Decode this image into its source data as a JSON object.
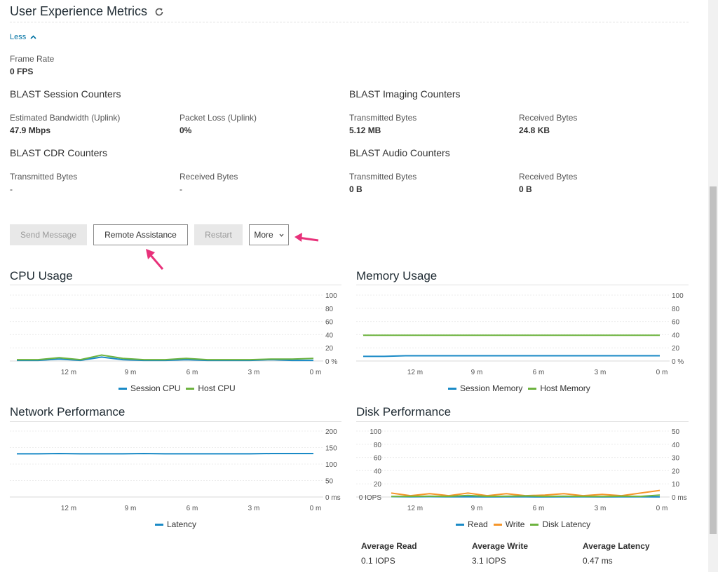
{
  "header": {
    "title": "User Experience Metrics",
    "refresh_icon": "refresh-icon"
  },
  "toggle": {
    "label": "Less",
    "icon": "chevron-up-icon"
  },
  "frame_rate": {
    "label": "Frame Rate",
    "value": "0 FPS"
  },
  "blast_session": {
    "title": "BLAST Session Counters",
    "bandwidth_label": "Estimated Bandwidth (Uplink)",
    "bandwidth_value": "47.9 Mbps",
    "packet_loss_label": "Packet Loss (Uplink)",
    "packet_loss_value": "0%"
  },
  "blast_imaging": {
    "title": "BLAST Imaging Counters",
    "tx_label": "Transmitted Bytes",
    "tx_value": "5.12 MB",
    "rx_label": "Received Bytes",
    "rx_value": "24.8 KB"
  },
  "blast_cdr": {
    "title": "BLAST CDR Counters",
    "tx_label": "Transmitted Bytes",
    "tx_value": "-",
    "rx_label": "Received Bytes",
    "rx_value": "-"
  },
  "blast_audio": {
    "title": "BLAST Audio Counters",
    "tx_label": "Transmitted Bytes",
    "tx_value": "0 B",
    "rx_label": "Received Bytes",
    "rx_value": "0 B"
  },
  "actions": {
    "send_message": "Send Message",
    "remote_assistance": "Remote Assistance",
    "restart": "Restart",
    "more": "More"
  },
  "colors": {
    "blue": "#1a8ac6",
    "green": "#6db33f",
    "orange": "#f5962a",
    "accent": "#e8317a"
  },
  "charts": {
    "cpu": {
      "title": "CPU Usage",
      "legend": [
        "Session CPU",
        "Host CPU"
      ]
    },
    "memory": {
      "title": "Memory Usage",
      "legend": [
        "Session Memory",
        "Host Memory"
      ]
    },
    "network": {
      "title": "Network Performance",
      "legend": [
        "Latency"
      ]
    },
    "disk": {
      "title": "Disk Performance",
      "legend": [
        "Read",
        "Write",
        "Disk Latency"
      ]
    }
  },
  "chart_data": [
    {
      "type": "line",
      "title": "CPU Usage",
      "x": [
        "14m",
        "13m",
        "12m",
        "11m",
        "10m",
        "9m",
        "8m",
        "7m",
        "6m",
        "5m",
        "4m",
        "3m",
        "2m",
        "1m",
        "0m"
      ],
      "x_ticks": [
        "12 m",
        "9 m",
        "6 m",
        "3 m",
        "0 m"
      ],
      "y_ticks": [
        "100",
        "80",
        "60",
        "40",
        "20",
        "0 %"
      ],
      "ylim": [
        0,
        100
      ],
      "series": [
        {
          "name": "Session CPU",
          "color": "#1a8ac6",
          "values": [
            1,
            1,
            3,
            1,
            6,
            2,
            1,
            1,
            2,
            1,
            1,
            1,
            2,
            1,
            1
          ]
        },
        {
          "name": "Host CPU",
          "color": "#6db33f",
          "values": [
            2,
            2,
            5,
            2,
            9,
            4,
            2,
            2,
            4,
            2,
            2,
            2,
            3,
            3,
            4
          ]
        }
      ]
    },
    {
      "type": "line",
      "title": "Memory Usage",
      "x": [
        "14m",
        "13m",
        "12m",
        "11m",
        "10m",
        "9m",
        "8m",
        "7m",
        "6m",
        "5m",
        "4m",
        "3m",
        "2m",
        "1m",
        "0m"
      ],
      "x_ticks": [
        "12 m",
        "9 m",
        "6 m",
        "3 m",
        "0 m"
      ],
      "y_ticks": [
        "100",
        "80",
        "60",
        "40",
        "20",
        "0 %"
      ],
      "ylim": [
        0,
        100
      ],
      "series": [
        {
          "name": "Session Memory",
          "color": "#1a8ac6",
          "values": [
            7,
            7,
            8,
            8,
            8,
            8,
            8,
            8,
            8,
            8,
            8,
            8,
            8,
            8,
            8
          ]
        },
        {
          "name": "Host Memory",
          "color": "#6db33f",
          "values": [
            39,
            39,
            39,
            39,
            39,
            39,
            39,
            39,
            39,
            39,
            39,
            39,
            39,
            39,
            39
          ]
        }
      ]
    },
    {
      "type": "line",
      "title": "Network Performance",
      "x": [
        "14m",
        "13m",
        "12m",
        "11m",
        "10m",
        "9m",
        "8m",
        "7m",
        "6m",
        "5m",
        "4m",
        "3m",
        "2m",
        "1m",
        "0m"
      ],
      "x_ticks": [
        "12 m",
        "9 m",
        "6 m",
        "3 m",
        "0 m"
      ],
      "y_ticks": [
        "200",
        "150",
        "100",
        "50",
        "0 ms"
      ],
      "ylim": [
        0,
        200
      ],
      "series": [
        {
          "name": "Latency",
          "color": "#1a8ac6",
          "values": [
            131,
            131,
            132,
            131,
            131,
            131,
            132,
            131,
            131,
            131,
            131,
            131,
            132,
            132,
            132
          ]
        }
      ]
    },
    {
      "type": "line",
      "title": "Disk Performance",
      "x": [
        "14m",
        "13m",
        "12m",
        "11m",
        "10m",
        "9m",
        "8m",
        "7m",
        "6m",
        "5m",
        "4m",
        "3m",
        "2m",
        "1m",
        "0m"
      ],
      "x_ticks": [
        "12 m",
        "9 m",
        "6 m",
        "3 m",
        "0 m"
      ],
      "y_ticks_left": [
        "100",
        "80",
        "60",
        "40",
        "20",
        "0 IOPS"
      ],
      "y_ticks_right": [
        "50",
        "40",
        "30",
        "20",
        "10",
        "0 ms"
      ],
      "ylim_left": [
        0,
        100
      ],
      "ylim_right": [
        0,
        50
      ],
      "series": [
        {
          "name": "Read",
          "axis": "left",
          "color": "#1a8ac6",
          "values": [
            0.5,
            0.3,
            0.5,
            0.2,
            0.3,
            0.1,
            0.3,
            0.2,
            0.1,
            0.3,
            0.2,
            0.1,
            0.2,
            0.3,
            0.1
          ]
        },
        {
          "name": "Write",
          "axis": "left",
          "color": "#f5962a",
          "values": [
            6,
            2,
            5,
            2,
            6,
            2,
            5,
            2,
            3,
            5,
            2,
            4,
            2,
            6,
            10
          ]
        },
        {
          "name": "Disk Latency",
          "axis": "right",
          "color": "#6db33f",
          "values": [
            0.4,
            0.5,
            0.6,
            0.5,
            1.2,
            0.5,
            0.6,
            0.8,
            0.5,
            0.6,
            0.5,
            0.4,
            0.6,
            0.5,
            1.5
          ]
        }
      ]
    }
  ],
  "disk_averages": {
    "read_label": "Average Read",
    "read_value": "0.1 IOPS",
    "write_label": "Average Write",
    "write_value": "3.1 IOPS",
    "latency_label": "Average Latency",
    "latency_value": "0.47 ms"
  }
}
